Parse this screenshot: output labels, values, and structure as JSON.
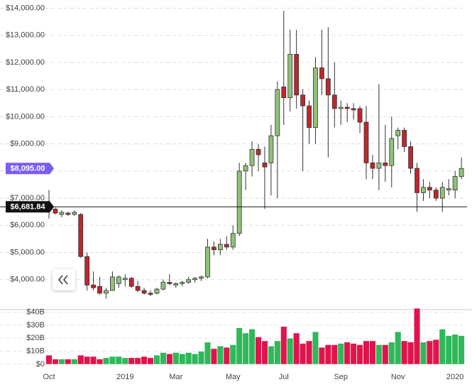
{
  "chart_data": {
    "type": "candlestick",
    "categories": [
      "Oct",
      null,
      null,
      null,
      null,
      null,
      null,
      null,
      null,
      null,
      null,
      null,
      "2019",
      null,
      null,
      null,
      null,
      null,
      null,
      null,
      "Mar",
      null,
      null,
      null,
      null,
      null,
      null,
      null,
      null,
      "May",
      null,
      null,
      null,
      null,
      null,
      null,
      null,
      "Jul",
      null,
      null,
      null,
      null,
      null,
      null,
      null,
      null,
      "Sep",
      null,
      null,
      null,
      null,
      null,
      null,
      null,
      null,
      "Nov",
      null,
      null,
      null,
      null,
      null,
      null,
      null,
      null,
      "2020",
      null
    ],
    "open": [
      6700,
      6600,
      6400,
      6450,
      6400,
      6400,
      4850,
      3800,
      3750,
      3500,
      3600,
      3850,
      4000,
      4050,
      3750,
      3600,
      3500,
      3500,
      3650,
      3900,
      3800,
      3850,
      3900,
      4000,
      4050,
      4100,
      5200,
      5100,
      5300,
      5200,
      5700,
      8000,
      8200,
      8800,
      8300,
      8300,
      9300,
      11100,
      10700,
      12300,
      10800,
      10400,
      9600,
      11800,
      11400,
      10800,
      10300,
      10350,
      10300,
      10300,
      9800,
      8300,
      8100,
      8300,
      8200,
      9300,
      9500,
      8900,
      8100,
      7200,
      7400,
      7300,
      7000,
      7300,
      7300,
      7800
    ],
    "high": [
      7300,
      6650,
      6550,
      6500,
      6550,
      6450,
      5000,
      4300,
      4100,
      3700,
      4300,
      4150,
      4200,
      4100,
      3950,
      3700,
      3600,
      3700,
      4000,
      4200,
      3900,
      3950,
      4100,
      4100,
      4150,
      5500,
      5400,
      5500,
      5600,
      6000,
      8300,
      8300,
      9100,
      9000,
      8900,
      9700,
      11300,
      13900,
      13200,
      13200,
      11000,
      10600,
      12200,
      13200,
      13300,
      12000,
      10600,
      10500,
      10500,
      10400,
      10400,
      8600,
      11200,
      9700,
      10000,
      9600,
      9600,
      9100,
      8300,
      7700,
      7600,
      7400,
      7600,
      7700,
      8000,
      8500
    ],
    "low": [
      6250,
      6400,
      6300,
      6350,
      6350,
      4800,
      3600,
      3600,
      3450,
      3300,
      3600,
      3700,
      3750,
      3700,
      3550,
      3450,
      3400,
      3450,
      3600,
      3800,
      3700,
      3750,
      3850,
      3900,
      3950,
      4050,
      4900,
      4900,
      5100,
      5100,
      5600,
      7300,
      7800,
      8000,
      6600,
      7100,
      7000,
      9700,
      10200,
      10300,
      8000,
      9000,
      9000,
      10800,
      8500,
      9600,
      9700,
      9800,
      9900,
      9400,
      7700,
      7700,
      7300,
      7600,
      7400,
      8800,
      8700,
      7900,
      6500,
      6900,
      7000,
      6900,
      6500,
      7100,
      7000,
      7700
    ],
    "close": [
      6600,
      6450,
      6480,
      6400,
      6480,
      4850,
      3800,
      3700,
      3500,
      3600,
      4100,
      4100,
      4050,
      3750,
      3600,
      3500,
      3450,
      3650,
      3900,
      3850,
      3850,
      3900,
      4000,
      4050,
      4100,
      5200,
      5100,
      5300,
      5200,
      5700,
      8000,
      8200,
      8800,
      8600,
      8150,
      9300,
      11000,
      10700,
      12300,
      10800,
      10400,
      9600,
      11800,
      11400,
      10800,
      10300,
      10350,
      10300,
      10250,
      9800,
      8300,
      8100,
      8300,
      8200,
      9200,
      9500,
      8900,
      8100,
      7200,
      7400,
      7300,
      7000,
      7400,
      7350,
      7800,
      8095
    ],
    "up_color": "#8fc17a",
    "down_color": "#c0262d",
    "ylim": [
      3000,
      14300
    ],
    "yticks": [
      {
        "value": 4000,
        "label": "$4,000.00"
      },
      {
        "value": 5000,
        "label": "$5,000.00"
      },
      {
        "value": 6000,
        "label": "$6,000.00"
      },
      {
        "value": 7000,
        "label": "$7,000.00"
      },
      {
        "value": 8000,
        "label": "$8,000.00"
      },
      {
        "value": 9000,
        "label": "$9,000.00"
      },
      {
        "value": 10000,
        "label": "$10,000.00"
      },
      {
        "value": 11000,
        "label": "$11,000.00"
      },
      {
        "value": 12000,
        "label": "$12,000.00"
      },
      {
        "value": 13000,
        "label": "$13,000.00"
      },
      {
        "value": 14000,
        "label": "$14,000.00"
      }
    ],
    "grid": true,
    "price_tags": [
      {
        "value": 8095,
        "label": "$8,095.00",
        "color": "#7b5cf0"
      },
      {
        "value": 6681.84,
        "label": "$6,681.84",
        "color": "#111111"
      }
    ],
    "volume": {
      "values": [
        7,
        4,
        4,
        4,
        4,
        7,
        6,
        6,
        4,
        5,
        6,
        6,
        5,
        5,
        5,
        6,
        5,
        7,
        9,
        8,
        9,
        8,
        9,
        8,
        10,
        17,
        12,
        14,
        13,
        15,
        28,
        24,
        27,
        21,
        18,
        14,
        18,
        29,
        20,
        24,
        16,
        18,
        25,
        13,
        15,
        15,
        16,
        17,
        16,
        15,
        18,
        18,
        15,
        15,
        17,
        25,
        18,
        17,
        43,
        17,
        18,
        19,
        27,
        22,
        23,
        22
      ],
      "up_color": "#2fb85a",
      "down_color": "#e0144c",
      "ylim": [
        0,
        42
      ],
      "yticks": [
        {
          "value": 0,
          "label": "$0"
        },
        {
          "value": 10,
          "label": "$10B"
        },
        {
          "value": 20,
          "label": "$20B"
        },
        {
          "value": 30,
          "label": "$30B"
        },
        {
          "value": 40,
          "label": "$40B"
        }
      ]
    }
  }
}
